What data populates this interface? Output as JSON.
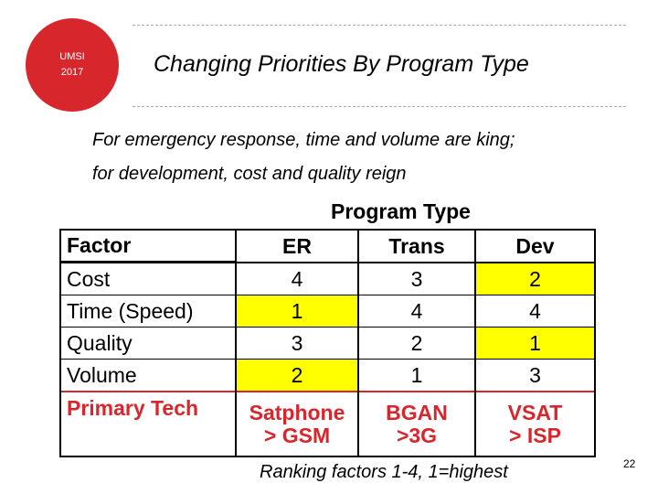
{
  "logo": {
    "line1": "UMSI",
    "line2": "2017"
  },
  "title": "Changing Priorities By Program Type",
  "subtitle_lines": [
    "For emergency response, time and volume are king;",
    "for development, cost and quality reign"
  ],
  "table": {
    "caption": "Program Type",
    "headers": [
      "Factor",
      "ER",
      "Trans",
      "Dev"
    ],
    "rows": [
      {
        "factor": "Cost",
        "er": "4",
        "trans": "3",
        "dev": "2"
      },
      {
        "factor": "Time (Speed)",
        "er": "1",
        "trans": "4",
        "dev": "4"
      },
      {
        "factor": "Quality",
        "er": "3",
        "trans": "2",
        "dev": "1"
      },
      {
        "factor": "Volume",
        "er": "2",
        "trans": "1",
        "dev": "3"
      }
    ],
    "tech_row": {
      "label": "Primary Tech",
      "er": [
        "Satphone",
        "> GSM"
      ],
      "trans": [
        "BGAN",
        ">3G"
      ],
      "dev": [
        "VSAT",
        "> ISP"
      ]
    },
    "highlight_color": "#ffff00",
    "tech_color": "#d7262c"
  },
  "footnote": "Ranking factors 1-4, 1=highest",
  "page_number": "22"
}
